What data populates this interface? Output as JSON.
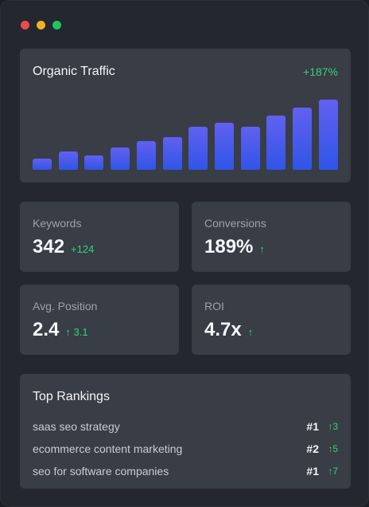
{
  "window": {
    "controls": [
      {
        "name": "close",
        "color": "#ef4a4a"
      },
      {
        "name": "minimize",
        "color": "#f3b024"
      },
      {
        "name": "maximize",
        "color": "#1fc45a"
      }
    ]
  },
  "traffic": {
    "title": "Organic Traffic",
    "change": "+187%",
    "chart_data": {
      "type": "bar",
      "values": [
        14,
        24,
        18,
        29,
        37,
        42,
        55,
        60,
        55,
        70,
        80,
        90
      ],
      "ylim": [
        0,
        90
      ],
      "bar_color": "#4c5aec"
    }
  },
  "stats": {
    "keywords": {
      "label": "Keywords",
      "value": "342",
      "delta": "+124"
    },
    "conversions": {
      "label": "Conversions",
      "value": "189%",
      "delta": "↑"
    },
    "position": {
      "label": "Avg. Position",
      "value": "2.4",
      "delta": "↑ 3.1"
    },
    "roi": {
      "label": "ROI",
      "value": "4.7x",
      "delta": "↑"
    }
  },
  "rankings": {
    "title": "Top Rankings",
    "rows": [
      {
        "keyword": "saas seo strategy",
        "position": "#1",
        "delta": "↑3"
      },
      {
        "keyword": "ecommerce content marketing",
        "position": "#2",
        "delta": "↑5"
      },
      {
        "keyword": "seo for software companies",
        "position": "#1",
        "delta": "↑7"
      }
    ]
  },
  "colors": {
    "accent_green": "#34d27a",
    "card": "#393d46",
    "background": "#24272f"
  }
}
